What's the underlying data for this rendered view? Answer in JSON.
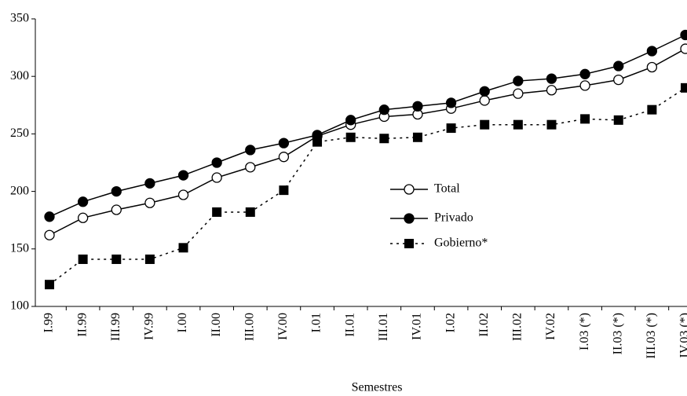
{
  "chart_data": {
    "type": "line",
    "x_label": "Semestres",
    "categories": [
      "I.99",
      "II.99",
      "III.99",
      "IV.99",
      "I.00",
      "II.00",
      "III.00",
      "IV.00",
      "I.01",
      "II.01",
      "III.01",
      "IV.01",
      "I.02",
      "II.02",
      "III.02",
      "IV.02",
      "I.03 (*)",
      "II.03 (*)",
      "III.03 (*)",
      "IV.03 (*)"
    ],
    "series": [
      {
        "name": "Total",
        "color": "#000000",
        "marker": "open-circle",
        "dash": false,
        "values": [
          162,
          177,
          184,
          190,
          197,
          212,
          221,
          230,
          248,
          258,
          265,
          267,
          272,
          279,
          285,
          288,
          292,
          297,
          308,
          324
        ]
      },
      {
        "name": "Privado",
        "color": "#000000",
        "marker": "filled-circle",
        "dash": false,
        "values": [
          178,
          191,
          200,
          207,
          214,
          225,
          236,
          242,
          249,
          262,
          271,
          274,
          277,
          287,
          296,
          298,
          302,
          309,
          322,
          336
        ]
      },
      {
        "name": "Gobierno*",
        "color": "#000000",
        "marker": "filled-square",
        "dash": true,
        "values": [
          119,
          141,
          141,
          141,
          151,
          182,
          182,
          201,
          243,
          247,
          246,
          247,
          255,
          258,
          258,
          258,
          263,
          262,
          271,
          290
        ]
      }
    ],
    "ylim": [
      100,
      350
    ],
    "yticks": [
      100,
      150,
      200,
      250,
      300,
      350
    ],
    "grid": false
  }
}
